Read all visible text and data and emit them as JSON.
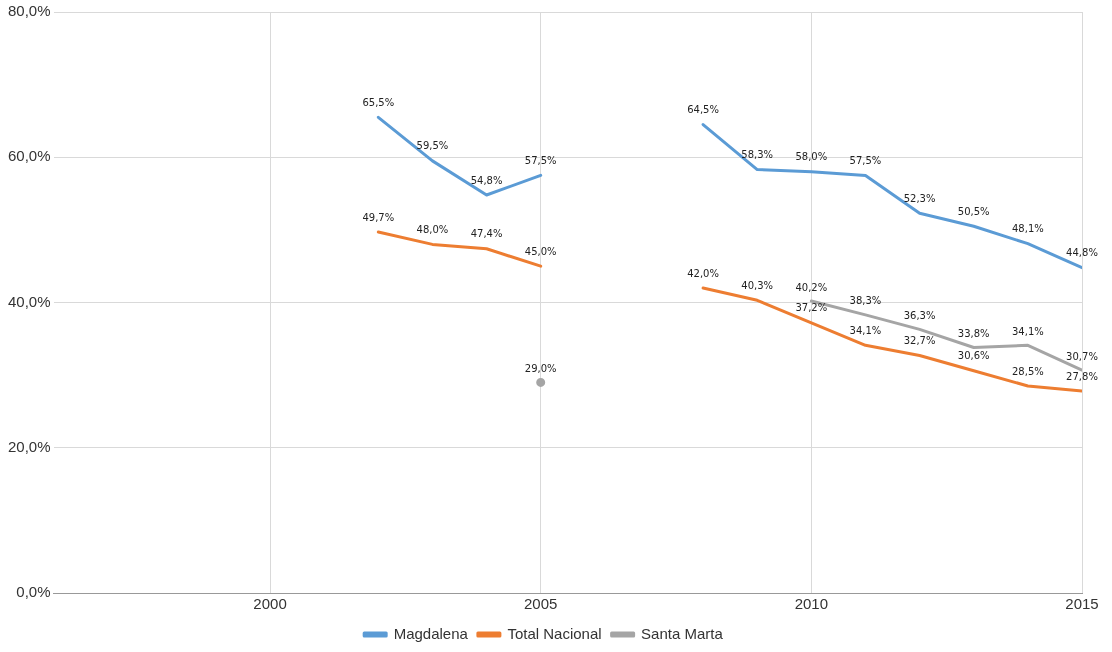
{
  "chart_data": {
    "type": "line",
    "x": [
      2002,
      2003,
      2004,
      2005,
      2006,
      2007,
      2008,
      2009,
      2010,
      2011,
      2012,
      2013,
      2014,
      2015
    ],
    "xlim": [
      1996,
      2015
    ],
    "xticks": [
      2000,
      2005,
      2010,
      2015
    ],
    "ylim": [
      0,
      80
    ],
    "yticks": [
      {
        "value": 0,
        "label": "0,0%"
      },
      {
        "value": 20,
        "label": "20,0%"
      },
      {
        "value": 40,
        "label": "40,0%"
      },
      {
        "value": 60,
        "label": "60,0%"
      },
      {
        "value": 80,
        "label": "80,0%"
      }
    ],
    "series": [
      {
        "name": "Magdalena",
        "color": "#5b9bd5",
        "values": [
          65.5,
          59.5,
          54.8,
          57.5,
          null,
          null,
          64.5,
          58.3,
          58.0,
          57.5,
          52.3,
          50.5,
          48.1,
          44.8
        ],
        "value_labels": [
          "65,5%",
          "59,5%",
          "54,8%",
          "57,5%",
          null,
          null,
          "64,5%",
          "58,3%",
          "58,0%",
          "57,5%",
          "52,3%",
          "50,5%",
          "48,1%",
          "44,8%"
        ]
      },
      {
        "name": "Total Nacional",
        "color": "#ed7d31",
        "values": [
          49.7,
          48.0,
          47.4,
          45.0,
          null,
          null,
          42.0,
          40.3,
          37.2,
          34.1,
          32.7,
          30.6,
          28.5,
          27.8
        ],
        "value_labels": [
          "49,7%",
          "48,0%",
          "47,4%",
          "45,0%",
          null,
          null,
          "42,0%",
          "40,3%",
          "37,2%",
          "34,1%",
          "32,7%",
          "30,6%",
          "28,5%",
          "27,8%"
        ]
      },
      {
        "name": "Santa Marta",
        "color": "#a5a5a5",
        "values": [
          null,
          null,
          null,
          29.0,
          null,
          null,
          null,
          null,
          40.2,
          38.3,
          36.3,
          33.8,
          34.1,
          30.7
        ],
        "value_labels": [
          null,
          null,
          null,
          "29,0%",
          null,
          null,
          null,
          null,
          "40,2%",
          "38,3%",
          "36,3%",
          "33,8%",
          "34,1%",
          "30,7%"
        ]
      }
    ],
    "grid": true,
    "legend": "bottom",
    "marker": "none",
    "line_style": "solid"
  }
}
